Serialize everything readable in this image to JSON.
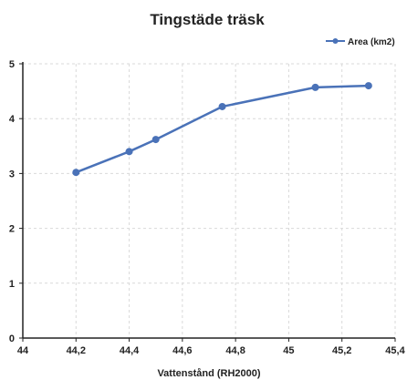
{
  "chart_data": {
    "type": "line",
    "title": "Tingstäde träsk",
    "xlabel": "Vattenstånd (RH2000)",
    "ylabel": "",
    "xlim": [
      44,
      45.4
    ],
    "ylim": [
      0,
      5
    ],
    "x_ticks": [
      44,
      44.2,
      44.4,
      44.6,
      44.8,
      45,
      45.2,
      45.4
    ],
    "x_tick_labels": [
      "44",
      "44,2",
      "44,4",
      "44,6",
      "44,8",
      "45",
      "45,2",
      "45,4"
    ],
    "y_ticks": [
      0,
      1,
      2,
      3,
      4,
      5
    ],
    "y_tick_labels": [
      "0",
      "1",
      "2",
      "3",
      "4",
      "5"
    ],
    "grid": true,
    "legend_position": "top-right",
    "series": [
      {
        "name": "Area (km2)",
        "color": "#4a72b8",
        "x": [
          44.2,
          44.4,
          44.5,
          44.75,
          45.1,
          45.3
        ],
        "y": [
          3.02,
          3.4,
          3.62,
          4.22,
          4.57,
          4.6
        ]
      }
    ]
  }
}
